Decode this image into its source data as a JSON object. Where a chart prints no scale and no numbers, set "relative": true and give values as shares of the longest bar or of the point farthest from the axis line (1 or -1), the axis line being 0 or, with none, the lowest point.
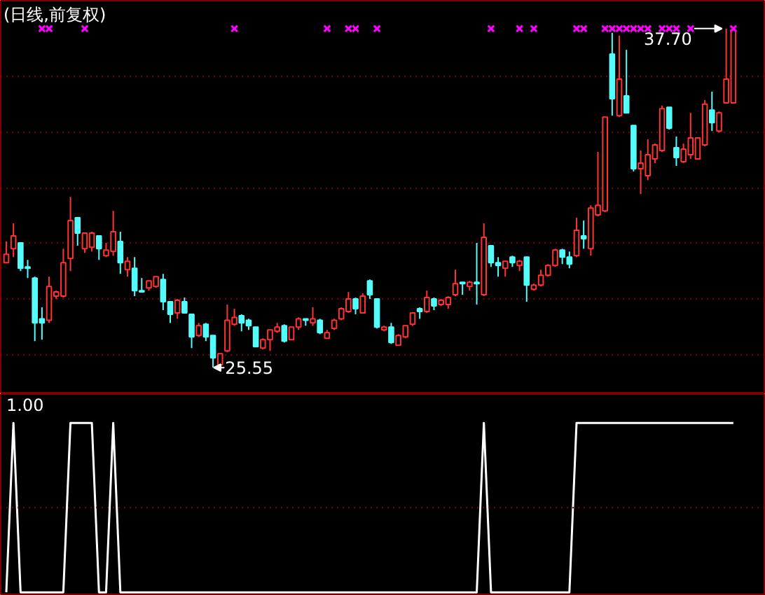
{
  "chart_data": [
    {
      "type": "candlestick",
      "title": "(日线,前复权)",
      "tick_labels": false,
      "grid": "y",
      "ylim": [
        24.6,
        38.7
      ],
      "yticks": [
        {
          "value": 26,
          "label": null
        },
        {
          "value": 28,
          "label": null
        },
        {
          "value": 30,
          "label": null
        },
        {
          "value": 32,
          "label": null
        },
        {
          "value": 34,
          "label": null
        },
        {
          "value": 36,
          "label": null
        }
      ],
      "annotations": [
        {
          "text": "37.70",
          "y": 37.7
        },
        "25.55"
      ],
      "categories": [
        null,
        null,
        null,
        null,
        null,
        null,
        null,
        null,
        null,
        null,
        null,
        null,
        null,
        null,
        null,
        null,
        null,
        null,
        null,
        null,
        null,
        null,
        null,
        null,
        null,
        null,
        null,
        null,
        null,
        null,
        null,
        null,
        null,
        null,
        null,
        null,
        null,
        null,
        null,
        null,
        null,
        null,
        null,
        null,
        null,
        null,
        null,
        null,
        null,
        null,
        null,
        null,
        null,
        null,
        null,
        null,
        null,
        null,
        null,
        null,
        null,
        null,
        null,
        null,
        null,
        null,
        null,
        null,
        null,
        null,
        null,
        null,
        null,
        null,
        null,
        null,
        null,
        null,
        null,
        null,
        null,
        null,
        null,
        null,
        null,
        null,
        null,
        null,
        null,
        null,
        null,
        null,
        null,
        null,
        null,
        null,
        null,
        null,
        null,
        null,
        null,
        null,
        null
      ],
      "ohlc": [
        [
          29.31,
          30.07,
          29.31,
          29.61
        ],
        [
          29.81,
          30.72,
          29.51,
          30.27
        ],
        [
          30.02,
          30.02,
          29.01,
          29.11
        ],
        [
          29.16,
          29.41,
          28.76,
          29.11
        ],
        [
          28.76,
          28.81,
          26.5,
          27.15
        ],
        [
          27.3,
          27.71,
          26.55,
          27.15
        ],
        [
          27.25,
          28.81,
          27.15,
          28.46
        ],
        [
          28.11,
          28.31,
          28.01,
          28.26
        ],
        [
          28.11,
          29.81,
          28.06,
          29.31
        ],
        [
          29.46,
          31.67,
          29.01,
          30.82
        ],
        [
          30.92,
          30.92,
          29.92,
          30.37
        ],
        [
          29.81,
          30.37,
          29.66,
          30.37
        ],
        [
          29.86,
          30.42,
          29.71,
          30.37
        ],
        [
          30.27,
          30.27,
          29.41,
          29.81
        ],
        [
          29.56,
          30.02,
          29.51,
          29.76
        ],
        [
          29.71,
          31.17,
          29.56,
          30.42
        ],
        [
          30.07,
          30.42,
          28.91,
          29.31
        ],
        [
          29.06,
          29.51,
          28.81,
          29.36
        ],
        [
          29.11,
          29.51,
          28.11,
          28.31
        ],
        [
          28.31,
          28.76,
          28.26,
          28.26
        ],
        [
          28.41,
          28.66,
          28.31,
          28.66
        ],
        [
          28.46,
          28.81,
          28.41,
          28.81
        ],
        [
          28.71,
          28.91,
          27.61,
          27.91
        ],
        [
          27.91,
          27.91,
          27.15,
          27.46
        ],
        [
          27.51,
          28.01,
          27.3,
          27.96
        ],
        [
          27.91,
          28.06,
          27.51,
          27.51
        ],
        [
          27.46,
          27.46,
          26.25,
          26.65
        ],
        [
          26.7,
          27.15,
          26.65,
          27.05
        ],
        [
          27.1,
          27.15,
          26.5,
          26.65
        ],
        [
          26.7,
          26.7,
          25.55,
          25.9
        ],
        [
          25.65,
          26.05,
          25.6,
          26.05
        ],
        [
          26.15,
          27.81,
          26.1,
          27.25
        ],
        [
          27.1,
          27.66,
          27.05,
          27.35
        ],
        [
          27.41,
          27.46,
          26.85,
          27.15
        ],
        [
          27.25,
          27.3,
          26.9,
          27.05
        ],
        [
          27.0,
          27.0,
          26.3,
          26.3
        ],
        [
          26.25,
          26.6,
          26.2,
          26.55
        ],
        [
          26.55,
          26.9,
          26.15,
          26.9
        ],
        [
          26.85,
          27.15,
          26.8,
          27.0
        ],
        [
          27.05,
          27.1,
          26.45,
          26.5
        ],
        [
          26.55,
          27.0,
          26.55,
          27.0
        ],
        [
          27.0,
          27.35,
          26.9,
          27.3
        ],
        [
          27.3,
          27.3,
          27.05,
          27.25
        ],
        [
          27.15,
          27.71,
          27.05,
          27.3
        ],
        [
          27.25,
          27.3,
          26.75,
          26.8
        ],
        [
          26.6,
          26.9,
          26.6,
          26.8
        ],
        [
          26.95,
          27.3,
          26.9,
          27.25
        ],
        [
          27.3,
          27.71,
          27.25,
          27.66
        ],
        [
          27.56,
          28.26,
          27.51,
          28.01
        ],
        [
          28.01,
          28.06,
          27.46,
          27.66
        ],
        [
          27.51,
          28.21,
          27.51,
          28.11
        ],
        [
          28.66,
          28.71,
          28.01,
          28.16
        ],
        [
          28.01,
          28.01,
          26.95,
          27.0
        ],
        [
          26.9,
          27.05,
          26.85,
          27.0
        ],
        [
          27.0,
          27.15,
          26.4,
          26.45
        ],
        [
          26.35,
          26.75,
          26.35,
          26.7
        ],
        [
          26.65,
          27.05,
          26.6,
          27.05
        ],
        [
          27.1,
          27.51,
          27.05,
          27.51
        ],
        [
          27.66,
          27.71,
          27.3,
          27.56
        ],
        [
          27.56,
          28.31,
          27.51,
          28.06
        ],
        [
          28.01,
          28.06,
          27.61,
          27.76
        ],
        [
          27.81,
          28.01,
          27.76,
          27.96
        ],
        [
          27.81,
          28.11,
          27.66,
          28.06
        ],
        [
          28.16,
          29.06,
          28.11,
          28.56
        ],
        [
          28.61,
          28.61,
          28.16,
          28.56
        ],
        [
          28.46,
          28.66,
          28.31,
          28.61
        ],
        [
          28.61,
          30.02,
          27.81,
          28.56
        ],
        [
          28.16,
          30.72,
          28.11,
          30.22
        ],
        [
          29.92,
          29.92,
          29.16,
          29.31
        ],
        [
          29.31,
          29.51,
          28.81,
          29.21
        ],
        [
          29.11,
          29.36,
          28.81,
          29.36
        ],
        [
          29.51,
          29.56,
          29.16,
          29.31
        ],
        [
          29.21,
          29.41,
          29.01,
          29.36
        ],
        [
          29.51,
          29.51,
          27.91,
          28.51
        ],
        [
          28.36,
          28.56,
          28.31,
          28.51
        ],
        [
          28.51,
          29.06,
          28.46,
          28.86
        ],
        [
          28.86,
          29.26,
          28.81,
          29.21
        ],
        [
          29.21,
          29.81,
          29.16,
          29.76
        ],
        [
          29.76,
          29.81,
          29.26,
          29.51
        ],
        [
          29.51,
          29.71,
          29.11,
          29.26
        ],
        [
          29.56,
          30.92,
          29.51,
          30.47
        ],
        [
          30.27,
          30.82,
          29.81,
          30.17
        ],
        [
          29.81,
          31.37,
          29.56,
          31.27
        ],
        [
          31.02,
          33.28,
          30.97,
          31.37
        ],
        [
          31.17,
          34.53,
          31.12,
          34.53
        ],
        [
          36.79,
          37.55,
          34.58,
          35.19
        ],
        [
          34.58,
          37.45,
          34.53,
          35.89
        ],
        [
          35.29,
          36.94,
          34.68,
          34.68
        ],
        [
          34.23,
          34.23,
          32.58,
          32.68
        ],
        [
          32.68,
          33.33,
          31.77,
          32.88
        ],
        [
          32.43,
          33.73,
          32.27,
          33.18
        ],
        [
          33.03,
          33.58,
          32.88,
          33.53
        ],
        [
          33.33,
          34.94,
          33.28,
          34.83
        ],
        [
          34.88,
          34.88,
          34.08,
          34.13
        ],
        [
          33.43,
          33.83,
          32.78,
          33.08
        ],
        [
          32.93,
          33.58,
          32.88,
          33.38
        ],
        [
          33.18,
          34.68,
          33.03,
          33.78
        ],
        [
          33.03,
          33.78,
          33.03,
          33.78
        ],
        [
          33.53,
          35.14,
          33.48,
          34.99
        ],
        [
          34.78,
          35.44,
          34.03,
          34.33
        ],
        [
          34.03,
          34.73,
          33.98,
          34.68
        ],
        [
          35.04,
          37.7,
          35.04,
          35.89
        ],
        [
          35.04,
          37.65,
          35.04,
          37.65
        ]
      ],
      "colors": [
        "#ff3232",
        "#ff3232",
        "#54fcfc",
        "#54fcfc",
        "#54fcfc",
        "#54fcfc",
        "#ff3232",
        "#ff3232",
        "#ff3232",
        "#ff3232",
        "#54fcfc",
        "#ff3232",
        "#ff3232",
        "#54fcfc",
        "#ff3232",
        "#ff3232",
        "#54fcfc",
        "#ff3232",
        "#54fcfc",
        "#54fcfc",
        "#ff3232",
        "#ff3232",
        "#54fcfc",
        "#54fcfc",
        "#ff3232",
        "#54fcfc",
        "#54fcfc",
        "#ff3232",
        "#54fcfc",
        "#54fcfc",
        "#ff3232",
        "#ff3232",
        "#ff3232",
        "#54fcfc",
        "#54fcfc",
        "#54fcfc",
        "#ff3232",
        "#ff3232",
        "#ff3232",
        "#54fcfc",
        "#ff3232",
        "#ff3232",
        "#54fcfc",
        "#ff3232",
        "#54fcfc",
        "#ff3232",
        "#ff3232",
        "#ff3232",
        "#ff3232",
        "#54fcfc",
        "#ff3232",
        "#54fcfc",
        "#54fcfc",
        "#ff3232",
        "#54fcfc",
        "#ff3232",
        "#ff3232",
        "#ff3232",
        "#54fcfc",
        "#ff3232",
        "#54fcfc",
        "#ff3232",
        "#ff3232",
        "#ff3232",
        "#54fcfc",
        "#ff3232",
        "#54fcfc",
        "#ff3232",
        "#54fcfc",
        "#54fcfc",
        "#ff3232",
        "#54fcfc",
        "#ff3232",
        "#54fcfc",
        "#ff3232",
        "#ff3232",
        "#ff3232",
        "#ff3232",
        "#54fcfc",
        "#54fcfc",
        "#ff3232",
        "#54fcfc",
        "#ff3232",
        "#ff3232",
        "#ff3232",
        "#54fcfc",
        "#ff3232",
        "#54fcfc",
        "#54fcfc",
        "#ff3232",
        "#ff3232",
        "#ff3232",
        "#ff3232",
        "#54fcfc",
        "#54fcfc",
        "#ff3232",
        "#ff3232",
        "#ff3232",
        "#ff3232",
        "#54fcfc",
        "#ff3232",
        "#ff3232",
        "#ff3232"
      ],
      "series": [
        {
          "type": "scatter",
          "marker": "cross",
          "color": "#ff00ff",
          "values": [
            null,
            null,
            null,
            null,
            null,
            37.7,
            37.7,
            null,
            null,
            null,
            null,
            37.7,
            null,
            null,
            null,
            null,
            null,
            null,
            null,
            null,
            null,
            null,
            null,
            null,
            null,
            null,
            null,
            null,
            null,
            null,
            null,
            null,
            37.7,
            null,
            null,
            null,
            null,
            null,
            null,
            null,
            null,
            null,
            null,
            null,
            null,
            37.7,
            null,
            null,
            37.7,
            37.7,
            null,
            null,
            37.7,
            null,
            null,
            null,
            null,
            null,
            null,
            null,
            null,
            null,
            null,
            null,
            null,
            null,
            null,
            null,
            37.7,
            null,
            null,
            null,
            37.7,
            null,
            37.7,
            null,
            null,
            null,
            null,
            null,
            37.7,
            37.7,
            null,
            null,
            37.7,
            37.7,
            37.7,
            37.7,
            37.7,
            37.7,
            37.7,
            null,
            37.7,
            37.7,
            37.7,
            null,
            37.7,
            null,
            null,
            null,
            null,
            null,
            37.7
          ]
        }
      ]
    },
    {
      "type": "line",
      "relative": true,
      "color": "#ffffff",
      "annotations": [
        "1.00"
      ],
      "ref_lines": [
        {
          "axis": "y",
          "value": 0.5,
          "color": "#800000",
          "line_style": "dotted"
        }
      ],
      "categories": [
        null,
        null,
        null,
        null,
        null,
        null,
        null,
        null,
        null,
        null,
        null,
        null,
        null,
        null,
        null,
        null,
        null,
        null,
        null,
        null,
        null,
        null,
        null,
        null,
        null,
        null,
        null,
        null,
        null,
        null,
        null,
        null,
        null,
        null,
        null,
        null,
        null,
        null,
        null,
        null,
        null,
        null,
        null,
        null,
        null,
        null,
        null,
        null,
        null,
        null,
        null,
        null,
        null,
        null,
        null,
        null,
        null,
        null,
        null,
        null,
        null,
        null,
        null,
        null,
        null,
        null,
        null,
        null,
        null,
        null,
        null,
        null,
        null,
        null,
        null,
        null,
        null,
        null,
        null,
        null,
        null,
        null,
        null,
        null,
        null,
        null,
        null,
        null,
        null,
        null,
        null,
        null,
        null,
        null,
        null,
        null,
        null,
        null,
        null,
        null,
        null,
        null,
        null
      ],
      "values": [
        0,
        1,
        0,
        0,
        0,
        0,
        0,
        0,
        0,
        1,
        1,
        1,
        1,
        0,
        0,
        1,
        0,
        0,
        0,
        0,
        0,
        0,
        0,
        0,
        0,
        0,
        0,
        0,
        0,
        0,
        0,
        0,
        0,
        0,
        0,
        0,
        0,
        0,
        0,
        0,
        0,
        0,
        0,
        0,
        0,
        0,
        0,
        0,
        0,
        0,
        0,
        0,
        0,
        0,
        0,
        0,
        0,
        0,
        0,
        0,
        0,
        0,
        0,
        0,
        0,
        0,
        0,
        1,
        0,
        0,
        0,
        0,
        0,
        0,
        0,
        0,
        0,
        0,
        0,
        0,
        1,
        1,
        1,
        1,
        1,
        1,
        1,
        1,
        1,
        1,
        1,
        1,
        1,
        1,
        1,
        1,
        1,
        1,
        1,
        1,
        1,
        1,
        1
      ]
    }
  ]
}
